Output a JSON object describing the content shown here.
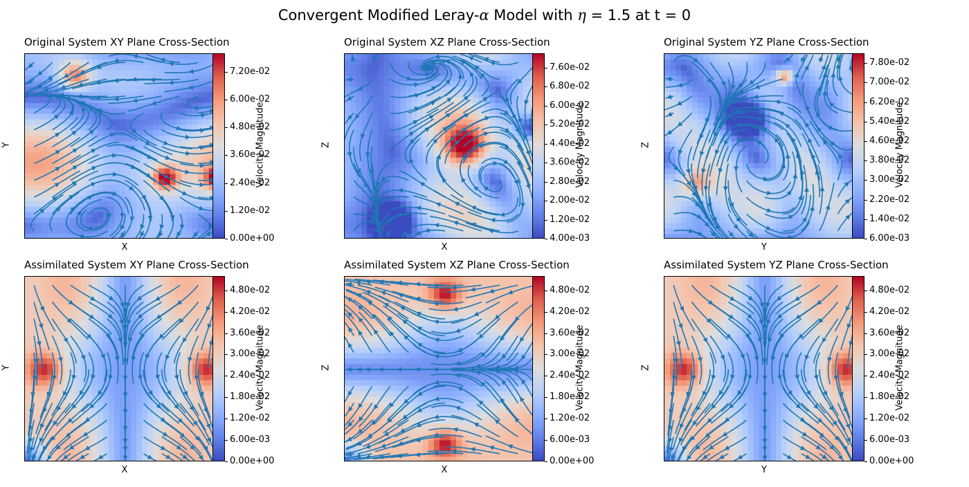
{
  "title": {
    "prefix": "Convergent Modified Leray-",
    "alpha": "α",
    "middle": " Model with ",
    "eta": "η",
    "suffix": " = 1.5 at t = 0"
  },
  "chart_data": [
    {
      "type": "heatmap",
      "title": "Original System XY Plane Cross-Section",
      "xlabel": "X",
      "ylabel": "Y",
      "colorbar_label": "Velocity Magnitude",
      "colormap": "coolwarm",
      "vmin": 0.0,
      "vmax": 0.08,
      "colorbar_ticks": [
        "0.00e+00",
        "1.20e-02",
        "2.40e-02",
        "3.60e-02",
        "4.80e-02",
        "6.00e-02",
        "7.20e-02"
      ],
      "colorbar_tick_values": [
        0.0,
        0.012,
        0.024,
        0.036,
        0.048,
        0.06,
        0.072
      ],
      "streamline_color": "#1f77b4",
      "pattern": "original_xy"
    },
    {
      "type": "heatmap",
      "title": "Original System XZ Plane Cross-Section",
      "xlabel": "X",
      "ylabel": "Z",
      "colorbar_label": "Velocity Magnitude",
      "colormap": "coolwarm",
      "vmin": 0.004,
      "vmax": 0.082,
      "colorbar_ticks": [
        "4.00e-03",
        "1.20e-02",
        "2.00e-02",
        "2.80e-02",
        "3.60e-02",
        "4.40e-02",
        "5.20e-02",
        "6.00e-02",
        "6.80e-02",
        "7.60e-02"
      ],
      "colorbar_tick_values": [
        0.004,
        0.012,
        0.02,
        0.028,
        0.036,
        0.044,
        0.052,
        0.06,
        0.068,
        0.076
      ],
      "streamline_color": "#1f77b4",
      "pattern": "original_xz"
    },
    {
      "type": "heatmap",
      "title": "Original System YZ Plane Cross-Section",
      "xlabel": "Y",
      "ylabel": "Z",
      "colorbar_label": "Velocity Magnitude",
      "colormap": "coolwarm",
      "vmin": 0.006,
      "vmax": 0.082,
      "colorbar_ticks": [
        "6.00e-03",
        "1.40e-02",
        "2.20e-02",
        "3.00e-02",
        "3.80e-02",
        "4.60e-02",
        "5.40e-02",
        "6.20e-02",
        "7.00e-02",
        "7.80e-02"
      ],
      "colorbar_tick_values": [
        0.006,
        0.014,
        0.022,
        0.03,
        0.038,
        0.046,
        0.054,
        0.062,
        0.07,
        0.078
      ],
      "streamline_color": "#1f77b4",
      "pattern": "original_yz"
    },
    {
      "type": "heatmap",
      "title": "Assimilated System XY Plane Cross-Section",
      "xlabel": "X",
      "ylabel": "Y",
      "colorbar_label": "Velocity Magnitude",
      "colormap": "coolwarm",
      "vmin": 0.0,
      "vmax": 0.052,
      "colorbar_ticks": [
        "0.00e+00",
        "6.00e-03",
        "1.20e-02",
        "1.80e-02",
        "2.40e-02",
        "3.00e-02",
        "3.60e-02",
        "4.20e-02",
        "4.80e-02"
      ],
      "colorbar_tick_values": [
        0.0,
        0.006,
        0.012,
        0.018,
        0.024,
        0.03,
        0.036,
        0.042,
        0.048
      ],
      "streamline_color": "#1f77b4",
      "pattern": "assim_xy"
    },
    {
      "type": "heatmap",
      "title": "Assimilated System XZ Plane Cross-Section",
      "xlabel": "X",
      "ylabel": "Z",
      "colorbar_label": "Velocity Magnitude",
      "colormap": "coolwarm",
      "vmin": 0.0,
      "vmax": 0.052,
      "colorbar_ticks": [
        "0.00e+00",
        "6.00e-03",
        "1.20e-02",
        "1.80e-02",
        "2.40e-02",
        "3.00e-02",
        "3.60e-02",
        "4.20e-02",
        "4.80e-02"
      ],
      "colorbar_tick_values": [
        0.0,
        0.006,
        0.012,
        0.018,
        0.024,
        0.03,
        0.036,
        0.042,
        0.048
      ],
      "streamline_color": "#1f77b4",
      "pattern": "assim_xz"
    },
    {
      "type": "heatmap",
      "title": "Assimilated System YZ Plane Cross-Section",
      "xlabel": "Y",
      "ylabel": "Z",
      "colorbar_label": "Velocity Magnitude",
      "colormap": "coolwarm",
      "vmin": 0.0,
      "vmax": 0.052,
      "colorbar_ticks": [
        "0.00e+00",
        "6.00e-03",
        "1.20e-02",
        "1.80e-02",
        "2.40e-02",
        "3.00e-02",
        "3.60e-02",
        "4.20e-02",
        "4.80e-02"
      ],
      "colorbar_tick_values": [
        0.0,
        0.006,
        0.012,
        0.018,
        0.024,
        0.03,
        0.036,
        0.042,
        0.048
      ],
      "streamline_color": "#1f77b4",
      "pattern": "assim_xy"
    }
  ]
}
